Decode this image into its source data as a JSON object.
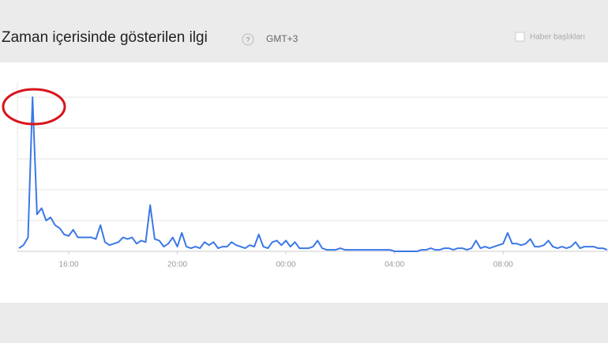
{
  "header": {
    "title": "Zaman içerisinde gösterilen ilgi",
    "help": "?",
    "timezone": "GMT+3",
    "checkbox_label": "Haber başlıkları"
  },
  "chart_data": {
    "type": "line",
    "color": "#3b78e7",
    "grid": true,
    "ylim": [
      0,
      100
    ],
    "yticks": [
      0,
      20,
      40,
      60,
      80,
      100
    ],
    "categories": [
      null,
      null,
      null,
      null,
      null,
      null,
      null,
      null,
      null,
      null,
      null,
      "16:00",
      null,
      null,
      null,
      null,
      null,
      null,
      null,
      null,
      null,
      null,
      null,
      null,
      null,
      null,
      null,
      null,
      null,
      null,
      null,
      null,
      null,
      null,
      null,
      "20:00",
      null,
      null,
      null,
      null,
      null,
      null,
      null,
      null,
      null,
      null,
      null,
      null,
      null,
      null,
      null,
      null,
      null,
      null,
      null,
      null,
      null,
      null,
      null,
      "00:00",
      null,
      null,
      null,
      null,
      null,
      null,
      null,
      null,
      null,
      null,
      null,
      null,
      null,
      null,
      null,
      null,
      null,
      null,
      null,
      null,
      null,
      null,
      null,
      "04:00",
      null,
      null,
      null,
      null,
      null,
      null,
      null,
      null,
      null,
      null,
      null,
      null,
      null,
      null,
      null,
      null,
      null,
      null,
      null,
      null,
      null,
      null,
      null,
      "08:00",
      null,
      null,
      null,
      null,
      null,
      null,
      null,
      null,
      null,
      null,
      null,
      null,
      null,
      null,
      null,
      null,
      null,
      null,
      null,
      null,
      null,
      null,
      null
    ],
    "values": [
      2,
      4,
      9,
      100,
      24,
      28,
      20,
      22,
      17,
      15,
      11,
      10,
      14,
      9,
      9,
      9,
      9,
      8,
      17,
      6,
      4,
      5,
      6,
      9,
      8,
      9,
      5,
      7,
      6,
      30,
      8,
      7,
      3,
      5,
      9,
      3,
      12,
      3,
      2,
      3,
      2,
      6,
      4,
      6,
      2,
      3,
      3,
      6,
      4,
      3,
      2,
      4,
      3,
      11,
      3,
      2,
      6,
      7,
      4,
      7,
      3,
      6,
      2,
      2,
      2,
      3,
      7,
      2,
      1,
      1,
      1,
      2,
      1,
      1,
      1,
      1,
      1,
      1,
      1,
      1,
      1,
      1,
      1,
      0,
      0,
      0,
      0,
      0,
      0,
      1,
      1,
      2,
      1,
      1,
      2,
      2,
      1,
      2,
      2,
      1,
      2,
      7,
      2,
      3,
      2,
      3,
      4,
      5,
      12,
      5,
      5,
      4,
      5,
      8,
      3,
      3,
      4,
      7,
      3,
      2,
      3,
      2,
      3,
      6,
      2,
      3,
      3,
      3,
      2,
      2,
      1
    ]
  }
}
